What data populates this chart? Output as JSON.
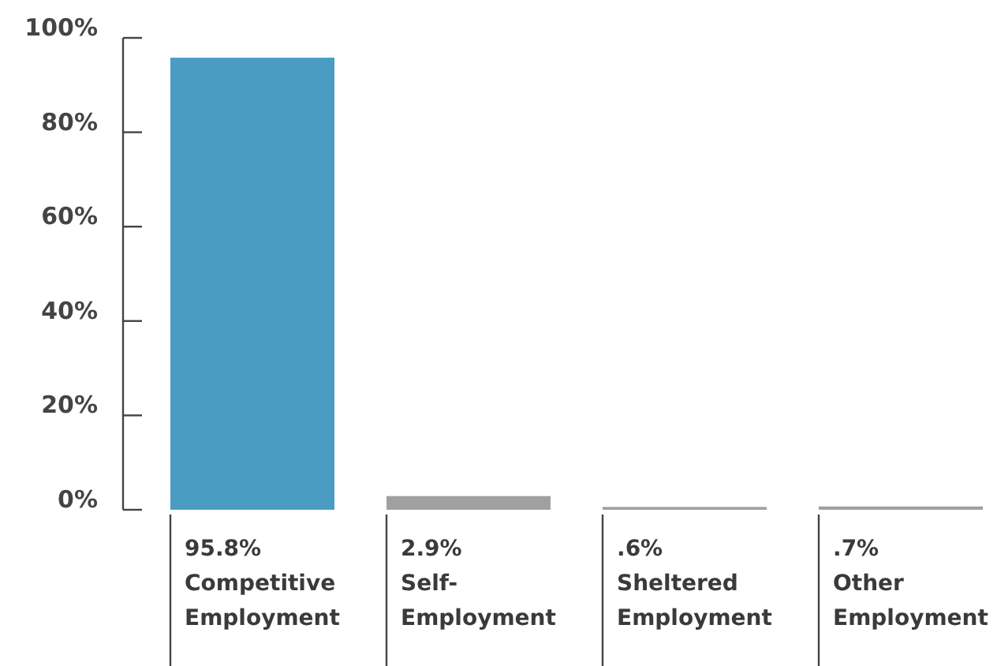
{
  "chart_data": {
    "type": "bar",
    "categories": [
      "Competitive Employment",
      "Self-Employment",
      "Sheltered Employment",
      "Other Employment"
    ],
    "values": [
      95.8,
      2.9,
      0.6,
      0.7
    ],
    "value_labels": [
      "95.8%",
      "2.9%",
      ".6%",
      ".7%"
    ],
    "colors": [
      "#4a9cc2",
      "#a0a0a0",
      "#a0a0a0",
      "#a0a0a0"
    ],
    "ylim": [
      0,
      100
    ],
    "yticks": [
      {
        "value": 0,
        "label": "0%"
      },
      {
        "value": 20,
        "label": "20%"
      },
      {
        "value": 40,
        "label": "40%"
      },
      {
        "value": 60,
        "label": "60%"
      },
      {
        "value": 80,
        "label": "80%"
      },
      {
        "value": 100,
        "label": "100%"
      }
    ],
    "grid": false
  }
}
